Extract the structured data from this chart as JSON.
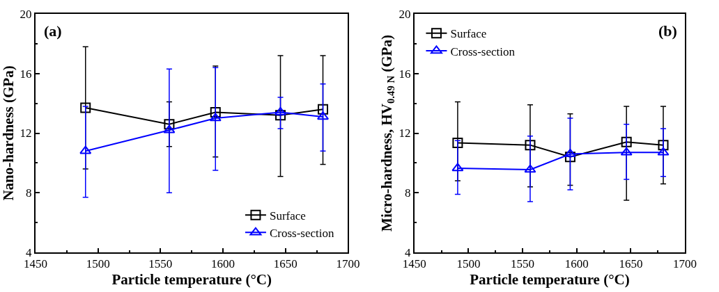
{
  "chart_data": [
    {
      "type": "line",
      "xlabel": "Particle temperature (°C)",
      "ylabel": "Nano-hardness (GPa)",
      "annotations": [
        "(a)"
      ],
      "x": [
        1490,
        1557,
        1594,
        1646,
        1680
      ],
      "xlim": [
        1450,
        1700
      ],
      "xticks": [
        1450,
        1500,
        1550,
        1600,
        1650,
        1700
      ],
      "ylim": [
        4,
        20
      ],
      "yticks": [
        4,
        8,
        12,
        16,
        20
      ],
      "legend": "bottom right",
      "series": [
        {
          "name": "Surface",
          "color": "#000000",
          "marker": "square",
          "values": [
            13.7,
            12.6,
            13.4,
            13.2,
            13.6
          ],
          "errors": [
            [
              9.6,
              17.8
            ],
            [
              11.1,
              14.1
            ],
            [
              10.4,
              16.5
            ],
            [
              9.1,
              17.2
            ],
            [
              9.9,
              17.2
            ]
          ]
        },
        {
          "name": "Cross-section",
          "color": "#0000ff",
          "marker": "triangle",
          "values": [
            10.8,
            12.2,
            13.0,
            13.4,
            13.1
          ],
          "errors": [
            [
              7.7,
              13.8
            ],
            [
              8.0,
              16.3
            ],
            [
              9.5,
              16.4
            ],
            [
              12.3,
              14.4
            ],
            [
              10.8,
              15.3
            ]
          ]
        }
      ]
    },
    {
      "type": "line",
      "xlabel": "Particle temperature (°C)",
      "ylabel": "Micro-hardness, HV$_{0.49 N}$ (GPa)",
      "annotations": [
        "(b)"
      ],
      "x": [
        1490,
        1557,
        1594,
        1646,
        1680
      ],
      "xlim": [
        1450,
        1700
      ],
      "xticks": [
        1450,
        1500,
        1550,
        1600,
        1650,
        1700
      ],
      "ylim": [
        4,
        20
      ],
      "yticks": [
        4,
        8,
        12,
        16,
        20
      ],
      "legend": "top left",
      "series": [
        {
          "name": "Surface",
          "color": "#000000",
          "marker": "square",
          "values": [
            11.35,
            11.2,
            10.4,
            11.4,
            11.2
          ],
          "errors": [
            [
              8.8,
              14.1
            ],
            [
              8.4,
              13.9
            ],
            [
              8.5,
              13.3
            ],
            [
              7.5,
              13.8
            ],
            [
              8.6,
              13.8
            ]
          ]
        },
        {
          "name": "Cross-section",
          "color": "#0000ff",
          "marker": "triangle",
          "values": [
            9.65,
            9.55,
            10.6,
            10.7,
            10.7
          ],
          "errors": [
            [
              7.9,
              11.5
            ],
            [
              7.4,
              11.8
            ],
            [
              8.2,
              13.0
            ],
            [
              8.9,
              12.6
            ],
            [
              9.1,
              12.3
            ]
          ]
        }
      ]
    }
  ]
}
